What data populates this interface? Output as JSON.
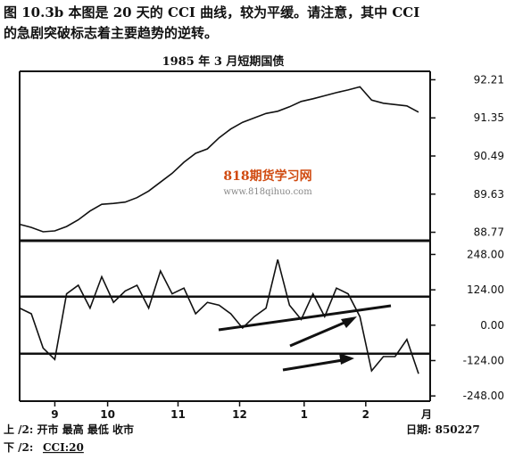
{
  "caption": {
    "line1": "图 10.3b  本图是 20 天的 CCI 曲线，较为平缓。请注意，其中 CCI",
    "line2": "的急剧突破标志着主要趋势的逆转。"
  },
  "watermark": {
    "name": "818期货学习网",
    "url": "www.818qihuo.com"
  },
  "chart_data": [
    {
      "type": "line",
      "title": "1985 年 3 月短期国债",
      "color": "#111",
      "x": [
        0,
        4,
        8,
        12,
        16,
        20,
        24,
        28,
        32,
        36,
        40,
        44,
        48,
        52,
        56,
        60,
        64,
        68,
        72,
        76,
        80,
        84,
        88,
        92,
        96,
        100,
        104,
        108,
        112,
        116,
        120,
        124,
        128,
        132,
        136
      ],
      "values": [
        88.95,
        88.88,
        88.78,
        88.8,
        88.9,
        89.05,
        89.25,
        89.4,
        89.42,
        89.45,
        89.55,
        89.7,
        89.9,
        90.1,
        90.35,
        90.55,
        90.65,
        90.9,
        91.1,
        91.25,
        91.35,
        91.45,
        91.5,
        91.6,
        91.72,
        91.78,
        91.85,
        91.92,
        91.98,
        92.05,
        91.75,
        91.68,
        91.65,
        91.62,
        91.48
      ],
      "xlim": [
        0,
        136
      ],
      "ylim": [
        88.62,
        92.36
      ],
      "yticks": [
        92.21,
        91.35,
        90.49,
        89.63,
        88.77
      ]
    },
    {
      "type": "line",
      "color": "#111",
      "x": [
        0,
        4,
        8,
        12,
        16,
        20,
        24,
        28,
        32,
        36,
        40,
        44,
        48,
        52,
        56,
        60,
        64,
        68,
        72,
        76,
        80,
        84,
        88,
        92,
        96,
        100,
        104,
        108,
        112,
        116,
        120,
        124,
        128,
        132,
        136
      ],
      "values": [
        60,
        40,
        -80,
        -120,
        110,
        140,
        60,
        170,
        80,
        120,
        140,
        60,
        190,
        110,
        130,
        40,
        80,
        70,
        40,
        -10,
        30,
        60,
        230,
        70,
        20,
        110,
        30,
        130,
        110,
        30,
        -160,
        -110,
        -110,
        -50,
        -170
      ],
      "xlim": [
        0,
        136
      ],
      "ylim": [
        -260,
        290
      ],
      "yticks": [
        {
          "value": 248,
          "label": "248.00"
        },
        {
          "value": 124,
          "label": "124.00"
        },
        {
          "value": 0,
          "label": "0.00"
        },
        {
          "value": -124,
          "label": "-124.00"
        },
        {
          "value": -248,
          "label": "-248.00"
        }
      ],
      "hlines": [
        100,
        -100
      ],
      "xticks": [
        {
          "value": 12,
          "label": "9"
        },
        {
          "value": 30,
          "label": "10"
        },
        {
          "value": 54,
          "label": "11"
        },
        {
          "value": 75,
          "label": "12"
        },
        {
          "value": 97,
          "label": "1"
        },
        {
          "value": 118,
          "label": "2"
        }
      ],
      "xlabel": "月"
    }
  ],
  "footer": {
    "upper": "上 /2:  开市    最高      最低       收市",
    "date": "日期: 850227",
    "lower_prefix": "下 /2:",
    "lower_indicator": "CCI:20"
  }
}
